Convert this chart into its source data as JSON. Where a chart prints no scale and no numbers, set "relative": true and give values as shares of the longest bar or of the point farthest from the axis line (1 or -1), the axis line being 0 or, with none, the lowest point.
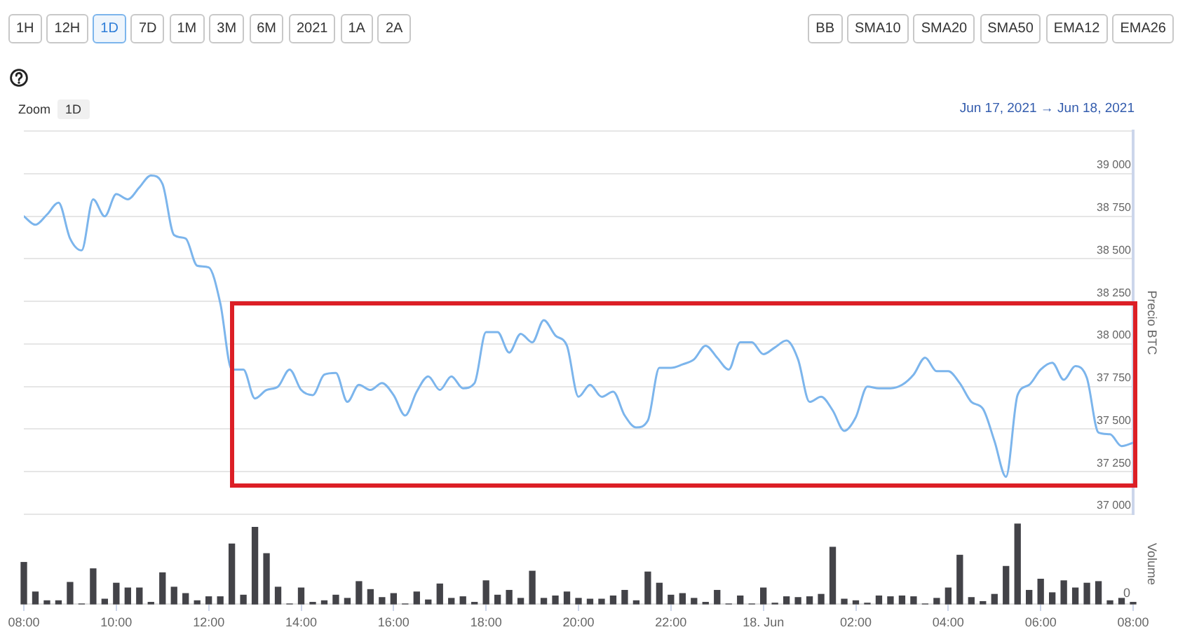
{
  "chart_data": [
    {
      "type": "other",
      "categories": [
        "1H",
        "12H",
        "1D",
        "7D",
        "1M",
        "3M",
        "6M",
        "2021",
        "1A",
        "2A"
      ]
    },
    {
      "type": "other",
      "categories": [
        "BB",
        "SMA10",
        "SMA20",
        "SMA50",
        "EMA12",
        "EMA26"
      ]
    },
    {
      "type": "other",
      "title": "Zoom",
      "categories": [
        "1D"
      ]
    },
    {
      "type": "line",
      "subtitle": "Jun 17, 2021 → Jun 18, 2021",
      "ylabel": "Precio BTC",
      "x": [
        "2021-06-17T08:00",
        "2021-06-17T08:15",
        "2021-06-17T08:30",
        "2021-06-17T08:45",
        "2021-06-17T09:00",
        "2021-06-17T09:15",
        "2021-06-17T09:30",
        "2021-06-17T09:45",
        "2021-06-17T10:00",
        "2021-06-17T10:15",
        "2021-06-17T10:30",
        "2021-06-17T10:45",
        "2021-06-17T11:00",
        "2021-06-17T11:15",
        "2021-06-17T11:30",
        "2021-06-17T11:45",
        "2021-06-17T12:00",
        "2021-06-17T12:15",
        "2021-06-17T12:30",
        "2021-06-17T12:45",
        "2021-06-17T13:00",
        "2021-06-17T13:15",
        "2021-06-17T13:30",
        "2021-06-17T13:45",
        "2021-06-17T14:00",
        "2021-06-17T14:15",
        "2021-06-17T14:30",
        "2021-06-17T14:45",
        "2021-06-17T15:00",
        "2021-06-17T15:15",
        "2021-06-17T15:30",
        "2021-06-17T15:45",
        "2021-06-17T16:00",
        "2021-06-17T16:15",
        "2021-06-17T16:30",
        "2021-06-17T16:45",
        "2021-06-17T17:00",
        "2021-06-17T17:15",
        "2021-06-17T17:30",
        "2021-06-17T17:45",
        "2021-06-17T18:00",
        "2021-06-17T18:15",
        "2021-06-17T18:30",
        "2021-06-17T18:45",
        "2021-06-17T19:00",
        "2021-06-17T19:15",
        "2021-06-17T19:30",
        "2021-06-17T19:45",
        "2021-06-17T20:00",
        "2021-06-17T20:15",
        "2021-06-17T20:30",
        "2021-06-17T20:45",
        "2021-06-17T21:00",
        "2021-06-17T21:15",
        "2021-06-17T21:30",
        "2021-06-17T21:45",
        "2021-06-17T22:00",
        "2021-06-17T22:15",
        "2021-06-17T22:30",
        "2021-06-17T22:45",
        "2021-06-17T23:00",
        "2021-06-17T23:15",
        "2021-06-17T23:30",
        "2021-06-17T23:45",
        "2021-06-18T00:00",
        "2021-06-18T00:15",
        "2021-06-18T00:30",
        "2021-06-18T00:45",
        "2021-06-18T01:00",
        "2021-06-18T01:15",
        "2021-06-18T01:30",
        "2021-06-18T01:45",
        "2021-06-18T02:00",
        "2021-06-18T02:15",
        "2021-06-18T02:30",
        "2021-06-18T02:45",
        "2021-06-18T03:00",
        "2021-06-18T03:15",
        "2021-06-18T03:30",
        "2021-06-18T03:45",
        "2021-06-18T04:00",
        "2021-06-18T04:15",
        "2021-06-18T04:30",
        "2021-06-18T04:45",
        "2021-06-18T05:00",
        "2021-06-18T05:15",
        "2021-06-18T05:30",
        "2021-06-18T05:45",
        "2021-06-18T06:00",
        "2021-06-18T06:15",
        "2021-06-18T06:30",
        "2021-06-18T06:45",
        "2021-06-18T07:00",
        "2021-06-18T07:15",
        "2021-06-18T07:30",
        "2021-06-18T07:45",
        "2021-06-18T08:00"
      ],
      "values": [
        38750,
        38700,
        38760,
        38830,
        38620,
        38550,
        38850,
        38750,
        38880,
        38850,
        38920,
        38990,
        38940,
        38640,
        38620,
        38460,
        38450,
        38240,
        37850,
        37850,
        37680,
        37730,
        37750,
        37850,
        37730,
        37700,
        37820,
        37830,
        37660,
        37760,
        37730,
        37770,
        37700,
        37580,
        37720,
        37810,
        37730,
        37810,
        37740,
        37770,
        38070,
        38070,
        37950,
        38060,
        38010,
        38140,
        38050,
        37990,
        37690,
        37760,
        37690,
        37720,
        37580,
        37510,
        37550,
        37860,
        37860,
        37880,
        37910,
        37990,
        37920,
        37850,
        38010,
        38010,
        37940,
        37980,
        38020,
        37910,
        37660,
        37690,
        37610,
        37490,
        37570,
        37750,
        37740,
        37740,
        37760,
        37820,
        37920,
        37840,
        37840,
        37770,
        37660,
        37620,
        37430,
        37220,
        37700,
        37760,
        37850,
        37890,
        37790,
        37870,
        37800,
        37480,
        37470,
        37400,
        37420
      ],
      "color": "#7cb5ec",
      "xlim": [
        "2021-06-17T08:00",
        "2021-06-18T08:00"
      ],
      "ylim": [
        37000,
        39250
      ],
      "yticks": [
        {
          "value": 37000,
          "label": "37 000"
        },
        {
          "value": 37250,
          "label": "37 250"
        },
        {
          "value": 37500,
          "label": "37 500"
        },
        {
          "value": 37750,
          "label": "37 750"
        },
        {
          "value": 38000,
          "label": "38 000"
        },
        {
          "value": 38250,
          "label": "38 250"
        },
        {
          "value": 38500,
          "label": "38 500"
        },
        {
          "value": 38750,
          "label": "38 750"
        },
        {
          "value": 39000,
          "label": "39 000"
        },
        {
          "value": 39250,
          "label": null
        }
      ],
      "grid": "y",
      "tick_labels": "y"
    },
    {
      "type": "bar",
      "ylabel": "Volume",
      "x": [
        "2021-06-17T08:00",
        "2021-06-17T08:15",
        "2021-06-17T08:30",
        "2021-06-17T08:45",
        "2021-06-17T09:00",
        "2021-06-17T09:15",
        "2021-06-17T09:30",
        "2021-06-17T09:45",
        "2021-06-17T10:00",
        "2021-06-17T10:15",
        "2021-06-17T10:30",
        "2021-06-17T10:45",
        "2021-06-17T11:00",
        "2021-06-17T11:15",
        "2021-06-17T11:30",
        "2021-06-17T11:45",
        "2021-06-17T12:00",
        "2021-06-17T12:15",
        "2021-06-17T12:30",
        "2021-06-17T12:45",
        "2021-06-17T13:00",
        "2021-06-17T13:15",
        "2021-06-17T13:30",
        "2021-06-17T13:45",
        "2021-06-17T14:00",
        "2021-06-17T14:15",
        "2021-06-17T14:30",
        "2021-06-17T14:45",
        "2021-06-17T15:00",
        "2021-06-17T15:15",
        "2021-06-17T15:30",
        "2021-06-17T15:45",
        "2021-06-17T16:00",
        "2021-06-17T16:15",
        "2021-06-17T16:30",
        "2021-06-17T16:45",
        "2021-06-17T17:00",
        "2021-06-17T17:15",
        "2021-06-17T17:30",
        "2021-06-17T17:45",
        "2021-06-17T18:00",
        "2021-06-17T18:15",
        "2021-06-17T18:30",
        "2021-06-17T18:45",
        "2021-06-17T19:00",
        "2021-06-17T19:15",
        "2021-06-17T19:30",
        "2021-06-17T19:45",
        "2021-06-17T20:00",
        "2021-06-17T20:15",
        "2021-06-17T20:30",
        "2021-06-17T20:45",
        "2021-06-17T21:00",
        "2021-06-17T21:15",
        "2021-06-17T21:30",
        "2021-06-17T21:45",
        "2021-06-17T22:00",
        "2021-06-17T22:15",
        "2021-06-17T22:30",
        "2021-06-17T22:45",
        "2021-06-17T23:00",
        "2021-06-17T23:15",
        "2021-06-17T23:30",
        "2021-06-17T23:45",
        "2021-06-18T00:00",
        "2021-06-18T00:15",
        "2021-06-18T00:30",
        "2021-06-18T00:45",
        "2021-06-18T01:00",
        "2021-06-18T01:15",
        "2021-06-18T01:30",
        "2021-06-18T01:45",
        "2021-06-18T02:00",
        "2021-06-18T02:15",
        "2021-06-18T02:30",
        "2021-06-18T02:45",
        "2021-06-18T03:00",
        "2021-06-18T03:15",
        "2021-06-18T03:30",
        "2021-06-18T03:45",
        "2021-06-18T04:00",
        "2021-06-18T04:15",
        "2021-06-18T04:30",
        "2021-06-18T04:45",
        "2021-06-18T05:00",
        "2021-06-18T05:15",
        "2021-06-18T05:30",
        "2021-06-18T05:45",
        "2021-06-18T06:00",
        "2021-06-18T06:15",
        "2021-06-18T06:30",
        "2021-06-18T06:45",
        "2021-06-18T07:00",
        "2021-06-18T07:15",
        "2021-06-18T07:30",
        "2021-06-18T07:45",
        "2021-06-18T08:00"
      ],
      "values": [
        0.52,
        0.15,
        0.04,
        0.04,
        0.27,
        0,
        0.44,
        0.06,
        0.26,
        0.2,
        0.2,
        0.02,
        0.39,
        0.21,
        0.13,
        0.04,
        0.09,
        0.09,
        0.75,
        0.11,
        0.96,
        0.63,
        0.21,
        0,
        0.2,
        0.02,
        0.04,
        0.11,
        0.07,
        0.28,
        0.18,
        0.08,
        0.13,
        0,
        0.15,
        0.05,
        0.25,
        0.07,
        0.09,
        0.02,
        0.29,
        0.11,
        0.17,
        0.07,
        0.41,
        0.07,
        0.1,
        0.15,
        0.07,
        0.06,
        0.06,
        0.1,
        0.17,
        0.04,
        0.4,
        0.26,
        0.11,
        0.13,
        0.07,
        0.02,
        0.17,
        0,
        0.1,
        0,
        0.2,
        0.01,
        0.09,
        0.08,
        0.09,
        0.12,
        0.71,
        0.06,
        0.04,
        0.01,
        0.1,
        0.09,
        0.1,
        0.09,
        0,
        0.07,
        0.2,
        0.61,
        0.08,
        0.03,
        0.12,
        0.47,
        1,
        0.17,
        0.31,
        0.14,
        0.29,
        0.2,
        0.26,
        0.28,
        0.04,
        0.07,
        0.02
      ],
      "color": "#434348",
      "relative": true,
      "xlim": [
        "2021-06-17T08:00",
        "2021-06-18T08:00"
      ],
      "xticks": [
        {
          "value": "2021-06-17T08:00",
          "label": "08:00"
        },
        {
          "value": "2021-06-17T10:00",
          "label": "10:00"
        },
        {
          "value": "2021-06-17T12:00",
          "label": "12:00"
        },
        {
          "value": "2021-06-17T14:00",
          "label": "14:00"
        },
        {
          "value": "2021-06-17T16:00",
          "label": "16:00"
        },
        {
          "value": "2021-06-17T18:00",
          "label": "18:00"
        },
        {
          "value": "2021-06-17T20:00",
          "label": "20:00"
        },
        {
          "value": "2021-06-17T22:00",
          "label": "22:00"
        },
        {
          "value": "2021-06-18T00:00",
          "label": "18. Jun"
        },
        {
          "value": "2021-06-18T02:00",
          "label": "02:00"
        },
        {
          "value": "2021-06-18T04:00",
          "label": "04:00"
        },
        {
          "value": "2021-06-18T06:00",
          "label": "06:00"
        },
        {
          "value": "2021-06-18T08:00",
          "label": "08:00"
        }
      ],
      "tick_labels": "x",
      "annotations": [
        "0"
      ]
    }
  ]
}
